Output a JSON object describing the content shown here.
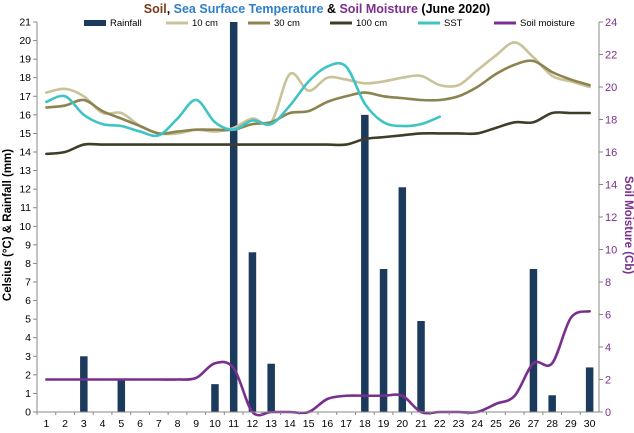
{
  "chart_data": {
    "type": "bar+line",
    "title_parts": [
      {
        "text": "Soil",
        "color": "#7a3a1a"
      },
      {
        "text": ", ",
        "color": "#000000"
      },
      {
        "text": "Sea Surface Temperature",
        "color": "#2f80c8"
      },
      {
        "text": " & ",
        "color": "#000000"
      },
      {
        "text": "Soil Moisture",
        "color": "#7a2f8f"
      },
      {
        "text": " (June 2020)",
        "color": "#000000"
      }
    ],
    "ylabel_left": "Celsius (°C) & Rainfall (mm)",
    "ylabel_right": "Soil Moisture (Cb)",
    "ylim_left": [
      0,
      21
    ],
    "ylim_right": [
      0,
      24
    ],
    "yticks_left": [
      0,
      1,
      2,
      3,
      4,
      5,
      6,
      7,
      8,
      9,
      10,
      11,
      12,
      13,
      14,
      15,
      16,
      17,
      18,
      19,
      20,
      21
    ],
    "yticks_right": [
      0,
      2,
      4,
      6,
      8,
      10,
      12,
      14,
      16,
      18,
      20,
      22,
      24
    ],
    "x_ticks": [
      1,
      2,
      3,
      4,
      5,
      6,
      7,
      8,
      9,
      10,
      11,
      12,
      13,
      14,
      15,
      16,
      17,
      18,
      19,
      20,
      21,
      22,
      23,
      24,
      25,
      26,
      27,
      28,
      29,
      30
    ],
    "bar_series": {
      "name": "Rainfall",
      "color": "#1b3a5c",
      "values": [
        0,
        0,
        3.0,
        0,
        1.8,
        0,
        0,
        0,
        0,
        1.5,
        21,
        8.6,
        2.6,
        0,
        0,
        0,
        0,
        16,
        7.7,
        12.1,
        4.9,
        0,
        0,
        0,
        0,
        0,
        7.7,
        0.9,
        0,
        2.4
      ]
    },
    "line_series": [
      {
        "name": "10 cm",
        "axis": "left",
        "color": "#c9c29a",
        "values": [
          17.2,
          17.4,
          17.0,
          16.1,
          16.1,
          15.4,
          15.0,
          15.0,
          15.2,
          15.1,
          15.3,
          15.8,
          15.6,
          18.2,
          17.3,
          18.0,
          17.9,
          17.7,
          17.8,
          18.0,
          18.1,
          17.6,
          17.6,
          18.4,
          19.2,
          19.9,
          19.1,
          18.1,
          17.8,
          17.5
        ]
      },
      {
        "name": "30 cm",
        "axis": "left",
        "color": "#8b8450",
        "values": [
          16.4,
          16.5,
          16.8,
          16.2,
          15.8,
          15.4,
          15.0,
          15.1,
          15.2,
          15.2,
          15.2,
          15.5,
          15.6,
          16.1,
          16.2,
          16.7,
          17.0,
          17.2,
          17.0,
          16.9,
          16.8,
          16.8,
          17.0,
          17.5,
          18.2,
          18.7,
          18.9,
          18.3,
          17.9,
          17.6
        ]
      },
      {
        "name": "100 cm",
        "axis": "left",
        "color": "#3f3d28",
        "values": [
          13.9,
          14.0,
          14.4,
          14.4,
          14.4,
          14.4,
          14.4,
          14.4,
          14.4,
          14.4,
          14.4,
          14.4,
          14.4,
          14.4,
          14.4,
          14.4,
          14.4,
          14.7,
          14.8,
          14.9,
          15.0,
          15.0,
          15.0,
          15.0,
          15.3,
          15.6,
          15.6,
          16.1,
          16.1,
          16.1
        ]
      },
      {
        "name": "SST",
        "axis": "left",
        "color": "#3ec4c4",
        "values": [
          16.7,
          17.0,
          16.0,
          15.5,
          15.4,
          15.1,
          14.9,
          15.8,
          16.8,
          15.6,
          15.2,
          15.7,
          15.5,
          16.5,
          17.8,
          18.6,
          18.6,
          16.6,
          15.6,
          15.4,
          15.5,
          15.9,
          null,
          null,
          null,
          null,
          null,
          null,
          null,
          null
        ]
      },
      {
        "name": "Soil moisture",
        "axis": "right",
        "color": "#7a2f8f",
        "values": [
          2.0,
          2.0,
          2.0,
          2.0,
          2.0,
          2.0,
          2.0,
          2.0,
          2.1,
          3.0,
          2.7,
          0,
          0,
          0,
          0,
          0.8,
          1.0,
          1.0,
          1.0,
          1.0,
          0,
          0,
          0,
          0,
          0.5,
          1.0,
          3.0,
          3.0,
          5.8,
          6.2
        ]
      }
    ],
    "legend": [
      "Rainfall",
      "10 cm",
      "30 cm",
      "100 cm",
      "SST",
      "Soil moisture"
    ],
    "legend_position": "top",
    "grid": false
  }
}
